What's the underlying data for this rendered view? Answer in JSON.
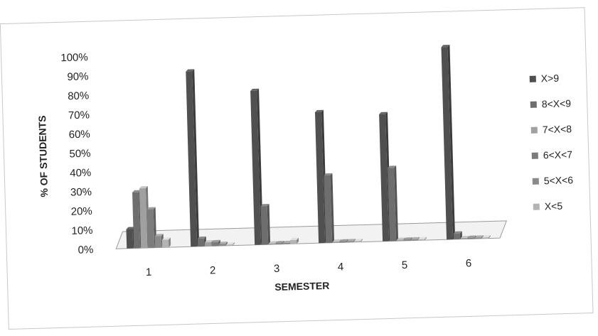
{
  "chart_data": {
    "type": "bar",
    "xlabel": "SEMESTER",
    "ylabel": "% OF STUDENTS",
    "ylim": [
      0,
      100
    ],
    "y_ticks": [
      "0%",
      "10%",
      "20%",
      "30%",
      "40%",
      "50%",
      "60%",
      "70%",
      "80%",
      "90%",
      "100%"
    ],
    "categories": [
      "1",
      "2",
      "3",
      "4",
      "5",
      "6"
    ],
    "legend_position": "right",
    "series": [
      {
        "name": "X>9",
        "values": [
          10,
          91,
          80,
          68,
          66,
          100
        ],
        "color": "#505050"
      },
      {
        "name": "8<X<9",
        "values": [
          29,
          4,
          20,
          35,
          38,
          3
        ],
        "color": "#6e6e6e"
      },
      {
        "name": "7<X<8",
        "values": [
          31,
          2,
          0,
          0,
          0,
          0
        ],
        "color": "#a0a0a0"
      },
      {
        "name": "6<X<7",
        "values": [
          20,
          2,
          0,
          0,
          0,
          0
        ],
        "color": "#7c7c7c"
      },
      {
        "name": "5<X<6",
        "values": [
          6,
          1,
          0,
          0,
          0,
          0
        ],
        "color": "#8a8a8a"
      },
      {
        "name": "X<5",
        "values": [
          4,
          0,
          2,
          0,
          0,
          0
        ],
        "color": "#b4b4b4"
      }
    ]
  }
}
